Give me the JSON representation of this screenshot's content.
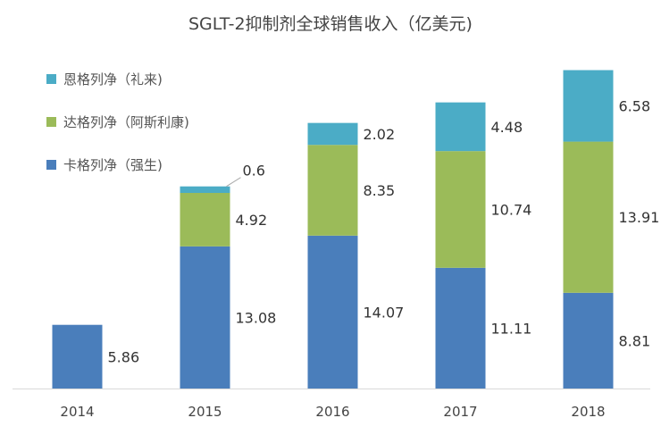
{
  "chart_data": {
    "type": "bar",
    "stacked": true,
    "title": "SGLT-2抑制剂全球销售收入（亿美元)",
    "categories": [
      "2014",
      "2015",
      "2016",
      "2017",
      "2018"
    ],
    "series": [
      {
        "name": "卡格列净（强生)",
        "color": "#4a7ebb",
        "values": [
          5.86,
          13.08,
          14.07,
          11.11,
          8.81
        ]
      },
      {
        "name": "达格列净（阿斯利康)",
        "color": "#9bbb59",
        "values": [
          null,
          4.92,
          8.35,
          10.74,
          13.91
        ]
      },
      {
        "name": "恩格列净（礼来)",
        "color": "#4bacc6",
        "values": [
          null,
          0.6,
          2.02,
          4.48,
          6.58
        ]
      }
    ],
    "value_labels": [
      [
        "5.86",
        "13.08",
        "14.07",
        "11.11",
        "8.81"
      ],
      [
        "",
        "4.92",
        "8.35",
        "10.74",
        "13.91"
      ],
      [
        "",
        "0.6",
        "2.02",
        "4.48",
        "6.58"
      ]
    ],
    "legend_order": [
      2,
      1,
      0
    ],
    "legend_position": "top-left",
    "ylim": [
      0,
      30
    ],
    "grid": false,
    "xlabel": "",
    "ylabel": ""
  }
}
